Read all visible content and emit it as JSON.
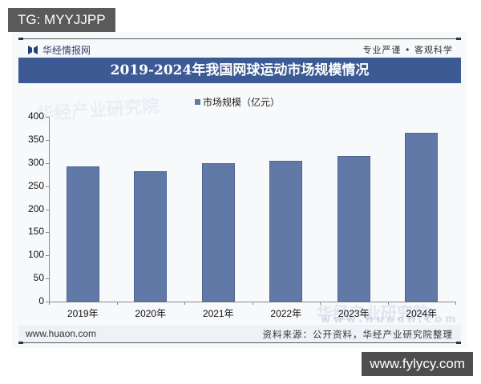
{
  "overlay": {
    "tg_label": "TG: MYYJJPP",
    "site_watermark": "www.fylycy.com"
  },
  "header": {
    "brand": "华经情报网",
    "slogan": "专业严谨 • 客观科学",
    "title": "2019-2024年我国网球运动市场规模情况"
  },
  "legend": {
    "label": "市场规模（亿元）",
    "color": "#6179a6"
  },
  "footer": {
    "website": "www.huaon.com",
    "source": "资料来源：公开资料，华经产业研究院整理"
  },
  "watermarks": [
    "华经产业研究院",
    "www.huaon.com"
  ],
  "chart_data": {
    "type": "bar",
    "title": "2019-2024年我国网球运动市场规模情况",
    "categories": [
      "2019年",
      "2020年",
      "2021年",
      "2022年",
      "2023年",
      "2024年"
    ],
    "series": [
      {
        "name": "市场规模（亿元）",
        "values": [
          292,
          283,
          299,
          305,
          316,
          365
        ],
        "color": "#6179a6"
      }
    ],
    "yticks": [
      "0",
      "50",
      "100",
      "150",
      "200",
      "250",
      "300",
      "350",
      "400"
    ],
    "xlabel": "",
    "ylabel": "",
    "ylim": [
      0,
      400
    ],
    "grid": false,
    "legend_position": "top"
  }
}
